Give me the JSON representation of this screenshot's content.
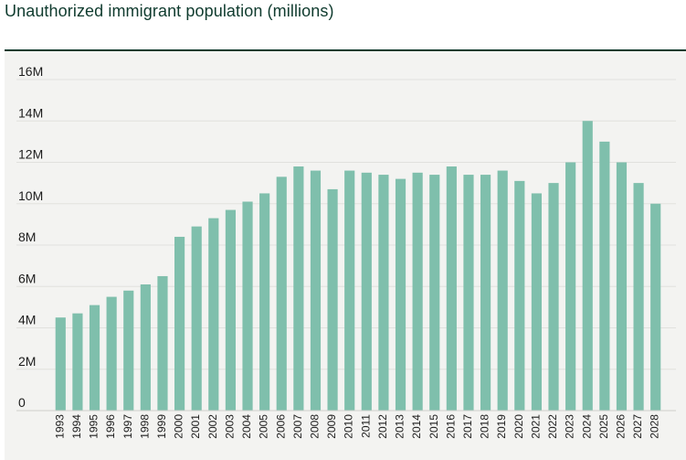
{
  "chart_data": {
    "type": "bar",
    "title": "Unauthorized immigrant population (millions)",
    "xlabel": "",
    "ylabel": "",
    "ylim": [
      0,
      16
    ],
    "yticks": [
      {
        "value": 0,
        "label": "0"
      },
      {
        "value": 2,
        "label": "2M"
      },
      {
        "value": 4,
        "label": "4M"
      },
      {
        "value": 6,
        "label": "6M"
      },
      {
        "value": 8,
        "label": "8M"
      },
      {
        "value": 10,
        "label": "10M"
      },
      {
        "value": 12,
        "label": "12M"
      },
      {
        "value": 14,
        "label": "14M"
      },
      {
        "value": 16,
        "label": "16M"
      }
    ],
    "grid": true,
    "bar_color": "#7fbfac",
    "categories": [
      "1993",
      "1994",
      "1995",
      "1996",
      "1997",
      "1998",
      "1999",
      "2000",
      "2001",
      "2002",
      "2003",
      "2004",
      "2005",
      "2006",
      "2007",
      "2008",
      "2009",
      "2010",
      "2011",
      "2012",
      "2013",
      "2014",
      "2015",
      "2016",
      "2017",
      "2018",
      "2019",
      "2020",
      "2021",
      "2022",
      "2023",
      "2024",
      "2025",
      "2026",
      "2027",
      "2028"
    ],
    "values": [
      4.5,
      4.7,
      5.1,
      5.5,
      5.8,
      6.1,
      6.5,
      8.4,
      8.9,
      9.3,
      9.7,
      10.1,
      10.5,
      11.3,
      11.8,
      11.6,
      10.7,
      11.6,
      11.5,
      11.4,
      11.2,
      11.5,
      11.4,
      11.8,
      11.4,
      11.4,
      11.6,
      11.1,
      10.5,
      11.0,
      12.0,
      14.0,
      13.0,
      12.0,
      11.0,
      10.0
    ]
  }
}
